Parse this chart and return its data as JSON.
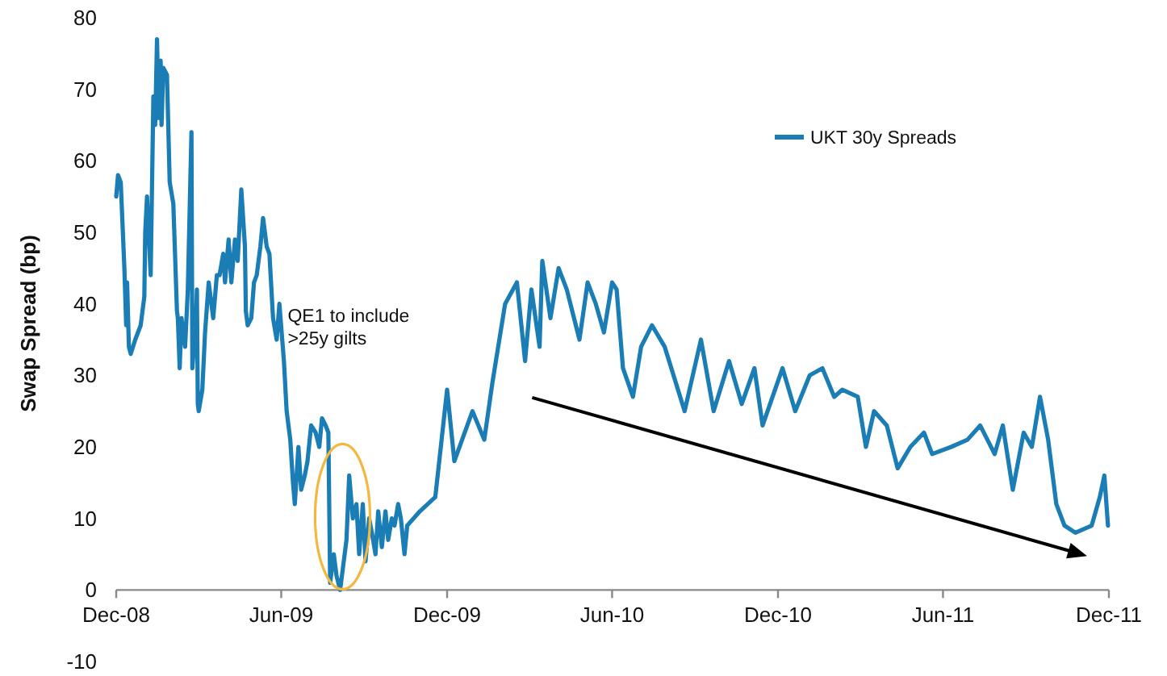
{
  "chart_data": {
    "type": "line",
    "ylabel": "Swap Spread (bp)",
    "x": [
      "2008-12-01",
      "2008-12-03",
      "2008-12-06",
      "2008-12-10",
      "2008-12-12",
      "2008-12-13",
      "2008-12-15",
      "2008-12-17",
      "2008-12-22",
      "2008-12-28",
      "2009-01-01",
      "2009-01-02",
      "2009-01-04",
      "2009-01-08",
      "2009-01-11",
      "2009-01-13",
      "2009-01-15",
      "2009-01-17",
      "2009-01-19",
      "2009-01-20",
      "2009-01-22",
      "2009-01-26",
      "2009-01-29",
      "2009-02-02",
      "2009-02-06",
      "2009-02-07",
      "2009-02-09",
      "2009-02-11",
      "2009-02-15",
      "2009-02-18",
      "2009-02-22",
      "2009-02-23",
      "2009-02-27",
      "2009-02-28",
      "2009-03-01",
      "2009-03-02",
      "2009-03-06",
      "2009-03-09",
      "2009-03-13",
      "2009-03-16",
      "2009-03-18",
      "2009-03-22",
      "2009-03-25",
      "2009-03-29",
      "2009-03-31",
      "2009-04-04",
      "2009-04-07",
      "2009-04-11",
      "2009-04-14",
      "2009-04-18",
      "2009-04-22",
      "2009-04-23",
      "2009-04-25",
      "2009-04-29",
      "2009-05-02",
      "2009-05-05",
      "2009-05-09",
      "2009-05-12",
      "2009-05-16",
      "2009-05-19",
      "2009-05-23",
      "2009-05-27",
      "2009-05-30",
      "2009-06-04",
      "2009-06-07",
      "2009-06-11",
      "2009-06-14",
      "2009-06-16",
      "2009-06-20",
      "2009-06-23",
      "2009-06-27",
      "2009-06-30",
      "2009-07-04",
      "2009-07-09",
      "2009-07-13",
      "2009-07-16",
      "2009-07-20",
      "2009-07-23",
      "2009-07-25",
      "2009-07-29",
      "2009-08-01",
      "2009-08-05",
      "2009-08-08",
      "2009-08-12",
      "2009-08-15",
      "2009-08-19",
      "2009-08-23",
      "2009-08-26",
      "2009-08-30",
      "2009-09-02",
      "2009-09-06",
      "2009-09-09",
      "2009-09-13",
      "2009-09-16",
      "2009-09-20",
      "2009-09-24",
      "2009-09-27",
      "2009-10-01",
      "2009-10-04",
      "2009-10-08",
      "2009-10-11",
      "2009-10-15",
      "2009-10-18",
      "2009-11-01",
      "2009-11-18",
      "2009-12-01",
      "2009-12-09",
      "2009-12-29",
      "2010-01-11",
      "2010-01-20",
      "2010-02-03",
      "2010-02-16",
      "2010-02-25",
      "2010-03-04",
      "2010-03-13",
      "2010-03-16",
      "2010-03-25",
      "2010-04-03",
      "2010-04-12",
      "2010-04-26",
      "2010-05-05",
      "2010-05-14",
      "2010-05-23",
      "2010-06-01",
      "2010-06-06",
      "2010-06-13",
      "2010-06-24",
      "2010-07-03",
      "2010-07-15",
      "2010-07-29",
      "2010-08-20",
      "2010-09-07",
      "2010-09-21",
      "2010-10-08",
      "2010-10-22",
      "2010-11-05",
      "2010-11-14",
      "2010-12-06",
      "2010-12-20",
      "2011-01-05",
      "2011-01-19",
      "2011-02-01",
      "2011-02-10",
      "2011-02-27",
      "2011-03-08",
      "2011-03-17",
      "2011-03-31",
      "2011-04-12",
      "2011-04-26",
      "2011-05-11",
      "2011-05-20",
      "2011-06-10",
      "2011-06-28",
      "2011-07-12",
      "2011-07-28",
      "2011-08-06",
      "2011-08-17",
      "2011-08-29",
      "2011-09-07",
      "2011-09-16",
      "2011-09-25",
      "2011-10-04",
      "2011-10-13",
      "2011-10-25",
      "2011-11-12",
      "2011-11-21",
      "2011-11-26",
      "2011-11-30"
    ],
    "series": [
      {
        "name": "UKT 30y Spreads",
        "color": "#1a7db5",
        "values": [
          55,
          58,
          57,
          45,
          37,
          43,
          34,
          33,
          35,
          37,
          41,
          50,
          55,
          44,
          69,
          65,
          77,
          66,
          74,
          65,
          73,
          72,
          57,
          54,
          39,
          38,
          31,
          38,
          34,
          42,
          64,
          31,
          38,
          42,
          26,
          25,
          28,
          36,
          43,
          40,
          38,
          44,
          44,
          47,
          43,
          49,
          43,
          49,
          46,
          56,
          48,
          39,
          37,
          38,
          43,
          44,
          48,
          52,
          48,
          47,
          38,
          35,
          40,
          32,
          25,
          21,
          15,
          12,
          20,
          14,
          16,
          18,
          23,
          22,
          20,
          24,
          23,
          22,
          1,
          5,
          2,
          0,
          3,
          7,
          16,
          10,
          12,
          5,
          12,
          4,
          10,
          8,
          5,
          11,
          6,
          11,
          7,
          10,
          9,
          12,
          10,
          5,
          9,
          11,
          13,
          28,
          18,
          25,
          21,
          29,
          40,
          43,
          32,
          42,
          34,
          46,
          38,
          45,
          42,
          35,
          43,
          40,
          36,
          43,
          42,
          31,
          27,
          34,
          37,
          34,
          25,
          35,
          25,
          32,
          26,
          31,
          23,
          31,
          25,
          30,
          31,
          27,
          28,
          27,
          20,
          25,
          23,
          17,
          20,
          22,
          19,
          20,
          21,
          23,
          19,
          23,
          14,
          22,
          20,
          27,
          21,
          12,
          9,
          8,
          9,
          13,
          16,
          9
        ]
      }
    ],
    "xlim": [
      "2008-12-01",
      "2011-12-01"
    ],
    "xticks": [
      {
        "value": "2008-12-01",
        "label": "Dec-08"
      },
      {
        "value": "2009-06-01",
        "label": "Jun-09"
      },
      {
        "value": "2009-12-01",
        "label": "Dec-09"
      },
      {
        "value": "2010-06-01",
        "label": "Jun-10"
      },
      {
        "value": "2010-12-01",
        "label": "Dec-10"
      },
      {
        "value": "2011-06-01",
        "label": "Jun-11"
      },
      {
        "value": "2011-12-01",
        "label": "Dec-11"
      }
    ],
    "ylim": [
      -10,
      80
    ],
    "yticks": [
      -10,
      0,
      10,
      20,
      30,
      40,
      50,
      60,
      70,
      80
    ],
    "grid": false,
    "legend": "top right",
    "marker": "none",
    "line_style": "solid",
    "annotations": [
      {
        "text": "QE1 to include >25y gilts",
        "x": "2009-06-01",
        "y": 33
      }
    ]
  }
}
